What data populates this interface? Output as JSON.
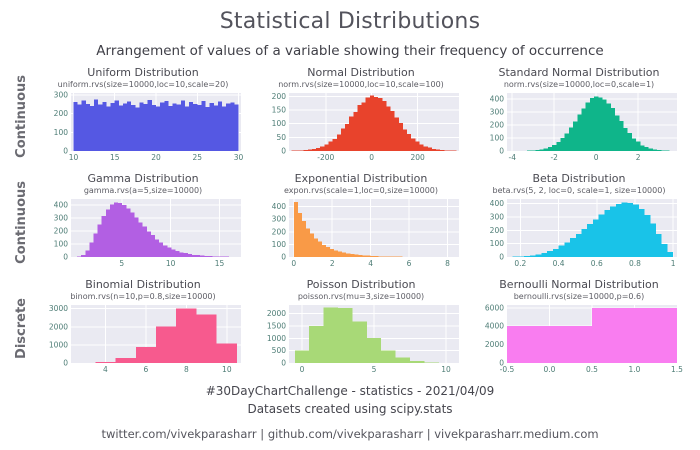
{
  "header": {
    "title": "Statistical Distributions",
    "subtitle": "Arrangement of values of a variable showing their frequency of occurrence"
  },
  "rows": [
    {
      "label": "Continuous"
    },
    {
      "label": "Continuous"
    },
    {
      "label": "Discrete"
    }
  ],
  "footer": {
    "line1": "#30DayChartChallenge - statistics - 2021/04/09",
    "line2": "Datasets created using scipy.stats",
    "line3": "twitter.com/vivekparasharr | github.com/vivekparasharr | vivekparasharr.medium.com"
  },
  "style": {
    "plot_bg": "#eaeaf2",
    "grid_color": "#ffffff",
    "tick_color": "#4e7d76",
    "title_color": "#4a4a52"
  },
  "chart_data": [
    {
      "type": "histogram",
      "title": "Uniform Distribution",
      "code": "uniform.rvs(size=10000,loc=10,scale=20)",
      "color": "#5558e3",
      "xlim": [
        9.7,
        30.3
      ],
      "ylim": [
        0,
        310
      ],
      "bin_start": 10,
      "bin_width": 0.5,
      "heights": [
        263,
        248,
        271,
        252,
        240,
        274,
        249,
        262,
        237,
        256,
        270,
        243,
        253,
        265,
        247,
        232,
        260,
        250,
        273,
        245,
        238,
        258,
        266,
        241,
        255,
        249,
        271,
        239,
        262,
        251,
        246,
        268,
        235,
        257,
        244,
        265,
        238,
        255,
        260,
        248
      ],
      "xticks": [
        [
          10,
          "10"
        ],
        [
          15,
          "15"
        ],
        [
          20,
          "20"
        ],
        [
          25,
          "25"
        ],
        [
          30,
          "30"
        ]
      ],
      "yticks": [
        [
          0,
          "0"
        ],
        [
          100,
          "100"
        ],
        [
          200,
          "200"
        ],
        [
          300,
          "300"
        ]
      ]
    },
    {
      "type": "histogram",
      "title": "Normal Distribution",
      "code": "norm.rvs(size=10000,loc=10,scale=100)",
      "color": "#e8432c",
      "xlim": [
        -360,
        380
      ],
      "ylim": [
        0,
        212
      ],
      "bin_start": -350,
      "bin_width": 18,
      "heights": [
        1,
        1,
        2,
        3,
        5,
        8,
        11,
        16,
        24,
        35,
        44,
        61,
        83,
        98,
        126,
        143,
        168,
        178,
        196,
        202,
        197,
        193,
        183,
        162,
        146,
        122,
        102,
        79,
        63,
        46,
        34,
        24,
        16,
        12,
        8,
        5,
        3,
        2,
        1,
        1
      ],
      "xticks": [
        [
          -200,
          "-200"
        ],
        [
          0,
          "0"
        ],
        [
          200,
          "200"
        ]
      ],
      "yticks": [
        [
          0,
          "0"
        ],
        [
          50,
          "50"
        ],
        [
          100,
          "100"
        ],
        [
          150,
          "150"
        ],
        [
          200,
          "200"
        ]
      ]
    },
    {
      "type": "histogram",
      "title": "Standard Normal Distribution",
      "code": "norm.rvs(size=10000,loc=0,scale=1)",
      "color": "#0fb58a",
      "xlim": [
        -4.25,
        3.85
      ],
      "ylim": [
        0,
        448
      ],
      "bin_start": -3.9,
      "bin_width": 0.2,
      "heights": [
        1,
        0,
        1,
        2,
        3,
        6,
        10,
        19,
        29,
        46,
        68,
        102,
        134,
        182,
        228,
        281,
        327,
        375,
        408,
        422,
        414,
        398,
        366,
        333,
        274,
        233,
        177,
        140,
        95,
        72,
        43,
        31,
        18,
        11,
        6,
        3,
        2,
        1
      ],
      "xticks": [
        [
          -4,
          "-4"
        ],
        [
          -2,
          "-2"
        ],
        [
          0,
          "0"
        ],
        [
          2,
          "2"
        ]
      ],
      "yticks": [
        [
          0,
          "0"
        ],
        [
          100,
          "100"
        ],
        [
          200,
          "200"
        ],
        [
          300,
          "300"
        ],
        [
          400,
          "400"
        ]
      ]
    },
    {
      "type": "histogram",
      "title": "Gamma Distribution",
      "code": "gamma.rvs(a=5,size=10000)",
      "color": "#b25fe3",
      "xlim": [
        -0.2,
        17.2
      ],
      "ylim": [
        0,
        445
      ],
      "bin_start": 0,
      "bin_width": 0.42,
      "heights": [
        0,
        4,
        15,
        49,
        110,
        180,
        250,
        316,
        366,
        403,
        419,
        415,
        398,
        371,
        342,
        304,
        266,
        233,
        196,
        167,
        136,
        113,
        90,
        74,
        57,
        47,
        35,
        29,
        22,
        17,
        14,
        10,
        8,
        6,
        4,
        3,
        2,
        2,
        1,
        1
      ],
      "xticks": [
        [
          5,
          "5"
        ],
        [
          10,
          "10"
        ],
        [
          15,
          "15"
        ]
      ],
      "yticks": [
        [
          0,
          "0"
        ],
        [
          100,
          "100"
        ],
        [
          200,
          "200"
        ],
        [
          300,
          "300"
        ],
        [
          400,
          "400"
        ]
      ]
    },
    {
      "type": "histogram",
      "title": "Exponential Distribution",
      "code": "expon.rvs(scale=1,loc=0,size=10000)",
      "color": "#f99a47",
      "xlim": [
        -0.25,
        8.6
      ],
      "ylim": [
        0,
        460
      ],
      "bin_start": 0,
      "bin_width": 0.21,
      "heights": [
        437,
        350,
        287,
        226,
        188,
        148,
        123,
        97,
        81,
        65,
        53,
        42,
        36,
        27,
        23,
        18,
        15,
        12,
        10,
        8,
        6,
        5,
        4,
        3,
        3,
        2,
        2,
        1,
        1,
        1,
        1,
        1,
        0,
        1,
        0,
        0,
        0,
        1,
        0,
        1
      ],
      "xticks": [
        [
          0,
          "0"
        ],
        [
          2,
          "2"
        ],
        [
          4,
          "4"
        ],
        [
          6,
          "6"
        ],
        [
          8,
          "8"
        ]
      ],
      "yticks": [
        [
          0,
          "0"
        ],
        [
          100,
          "100"
        ],
        [
          200,
          "200"
        ],
        [
          300,
          "300"
        ],
        [
          400,
          "400"
        ]
      ]
    },
    {
      "type": "histogram",
      "title": "Beta Distribution",
      "code": "beta.rvs(5, 2, loc=0, scale=1, size=10000)",
      "color": "#19c3e8",
      "xlim": [
        0.13,
        1.02
      ],
      "ylim": [
        0,
        435
      ],
      "bin_start": 0.16,
      "bin_width": 0.03,
      "heights": [
        2,
        4,
        7,
        12,
        19,
        30,
        45,
        61,
        85,
        109,
        141,
        172,
        210,
        247,
        282,
        319,
        351,
        377,
        398,
        409,
        405,
        392,
        361,
        316,
        251,
        174,
        96,
        37
      ],
      "xticks": [
        [
          0.2,
          "0.2"
        ],
        [
          0.4,
          "0.4"
        ],
        [
          0.6,
          "0.6"
        ],
        [
          0.8,
          "0.8"
        ],
        [
          1.0,
          "1"
        ]
      ],
      "yticks": [
        [
          0,
          "0"
        ],
        [
          100,
          "100"
        ],
        [
          200,
          "200"
        ],
        [
          300,
          "300"
        ],
        [
          400,
          "400"
        ]
      ]
    },
    {
      "type": "histogram",
      "title": "Binomial Distribution",
      "code": "binom.rvs(n=10,p=0.8,size=10000)",
      "color": "#f75a8e",
      "xlim": [
        2.3,
        10.7
      ],
      "ylim": [
        0,
        3200
      ],
      "bin_start": 2.5,
      "bin_width": 1,
      "heights": [
        8,
        55,
        264,
        880,
        2013,
        3020,
        2684,
        1074
      ],
      "xticks": [
        [
          4,
          "4"
        ],
        [
          6,
          "6"
        ],
        [
          8,
          "8"
        ],
        [
          10,
          "10"
        ]
      ],
      "yticks": [
        [
          0,
          "0"
        ],
        [
          1000,
          "1000"
        ],
        [
          2000,
          "2000"
        ],
        [
          3000,
          "3000"
        ]
      ]
    },
    {
      "type": "histogram",
      "title": "Poisson Distribution",
      "code": "poisson.rvs(mu=3,size=10000)",
      "color": "#a8d977",
      "xlim": [
        -0.9,
        10.9
      ],
      "ylim": [
        0,
        2350
      ],
      "bin_start": -0.5,
      "bin_width": 1,
      "heights": [
        498,
        1494,
        2241,
        2235,
        1679,
        1007,
        505,
        215,
        82,
        28,
        9
      ],
      "xticks": [
        [
          0,
          "0"
        ],
        [
          5,
          "5"
        ],
        [
          10,
          "10"
        ]
      ],
      "yticks": [
        [
          0,
          "0"
        ],
        [
          500,
          "500"
        ],
        [
          1000,
          "1000"
        ],
        [
          1500,
          "1500"
        ],
        [
          2000,
          "2000"
        ]
      ]
    },
    {
      "type": "histogram",
      "title": "Bernoulli Normal Distribution",
      "code": "bernoulli.rvs(size=10000,p=0.6)",
      "color": "#f97df0",
      "xlim": [
        -0.5,
        1.5
      ],
      "ylim": [
        0,
        6300
      ],
      "bin_start": -0.5,
      "bin_width": 1,
      "heights": [
        4005,
        5995
      ],
      "xticks": [
        [
          -0.5,
          "-0.5"
        ],
        [
          0.0,
          "0.0"
        ],
        [
          0.5,
          "0.5"
        ],
        [
          1.0,
          "1.0"
        ],
        [
          1.5,
          "1.5"
        ]
      ],
      "yticks": [
        [
          0,
          "0"
        ],
        [
          2000,
          "2000"
        ],
        [
          4000,
          "4000"
        ],
        [
          6000,
          "6000"
        ]
      ]
    }
  ]
}
